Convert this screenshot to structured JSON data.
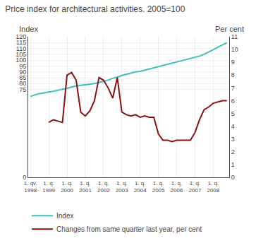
{
  "chart_data": {
    "type": "line",
    "title": "Price index for architectural activities. 2005=100",
    "ylabel": "Index",
    "y2label": "Per cent",
    "categories": [
      "1. qv.\n1998",
      null,
      null,
      null,
      "1. q.\n1999",
      null,
      null,
      null,
      "1. q.\n2000",
      null,
      null,
      null,
      "1. q.\n2001",
      null,
      null,
      null,
      "1. q.\n2002",
      null,
      null,
      null,
      "1. q.\n2003",
      null,
      null,
      null,
      "1. q.\n2004",
      null,
      null,
      null,
      "1. q.\n2005",
      null,
      null,
      null,
      "1. q.\n2006",
      null,
      null,
      null,
      "1. q.\n2007",
      null,
      null,
      null,
      "1. q.\n2008",
      null,
      null,
      null
    ],
    "series": [
      {
        "name": "Index",
        "color": "#3DBFBF",
        "values": [
          69.0,
          70.5,
          71.5,
          72.0,
          72.8,
          73.5,
          74.2,
          75.0,
          76.0,
          77.0,
          78.0,
          78.5,
          79.0,
          79.5,
          80.0,
          81.0,
          82.0,
          83.0,
          84.5,
          85.5,
          87.0,
          88.0,
          89.0,
          90.0,
          90.5,
          91.5,
          92.5,
          93.5,
          94.5,
          95.5,
          96.5,
          97.5,
          98.5,
          99.5,
          100.5,
          101.5,
          102.5,
          103.5,
          105.0,
          107.0,
          109.0,
          111.0,
          113.0,
          115.0
        ]
      },
      {
        "name": "Changes from same quarter last year, per cent",
        "color": "#8B1010",
        "axis": "y2",
        "values": [
          null,
          null,
          null,
          null,
          4.3,
          4.5,
          4.4,
          4.3,
          8.0,
          8.2,
          7.6,
          5.1,
          4.8,
          5.2,
          6.0,
          7.8,
          7.6,
          7.0,
          6.2,
          7.8,
          5.1,
          4.9,
          4.8,
          4.9,
          4.7,
          4.8,
          4.7,
          4.7,
          3.4,
          2.9,
          2.9,
          2.8,
          2.9,
          2.9,
          2.9,
          2.9,
          3.5,
          4.5,
          5.3,
          5.5,
          5.8,
          5.9,
          6.0,
          6.0
        ]
      }
    ],
    "ylim": [
      0,
      120
    ],
    "yticks": [
      0,
      75,
      80,
      85,
      90,
      95,
      100,
      105,
      110,
      115,
      120
    ],
    "y2lim": [
      0,
      11
    ],
    "y2ticks": [
      0,
      1,
      2,
      3,
      4,
      5,
      6,
      7,
      8,
      9,
      10,
      11
    ],
    "grid": true,
    "legend": "bottom"
  }
}
